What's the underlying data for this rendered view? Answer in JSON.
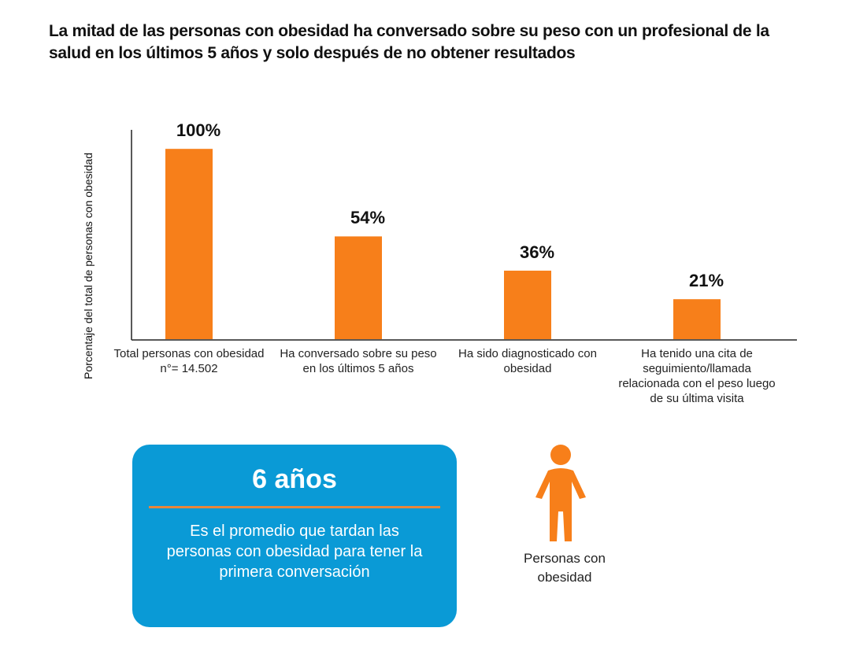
{
  "chart_data": {
    "type": "bar",
    "title": "La mitad de las personas con obesidad ha conversado sobre su peso con un profesional de la salud en los últimos 5 años y solo después de no obtener resultados",
    "y_label": "Porcentaje del total de personas con obesidad",
    "categories": [
      "Total personas con obesidad n°= 14.502",
      "Ha conversado sobre su peso en los últimos 5 años",
      "Ha sido diagnosticado con obesidad",
      "Ha tenido una cita de seguimiento/llamada relacionada con el peso luego de su última visita"
    ],
    "values": [
      100,
      54,
      36,
      21
    ],
    "value_labels": [
      "100%",
      "54%",
      "36%",
      "21%"
    ],
    "color": "#f77f1a",
    "ylim": [
      0,
      110
    ]
  },
  "callout": {
    "headline": "6 años",
    "text": "Es el promedio que tardan las personas con obesidad para tener la primera conversación"
  },
  "icon_label": "Personas con obesidad"
}
